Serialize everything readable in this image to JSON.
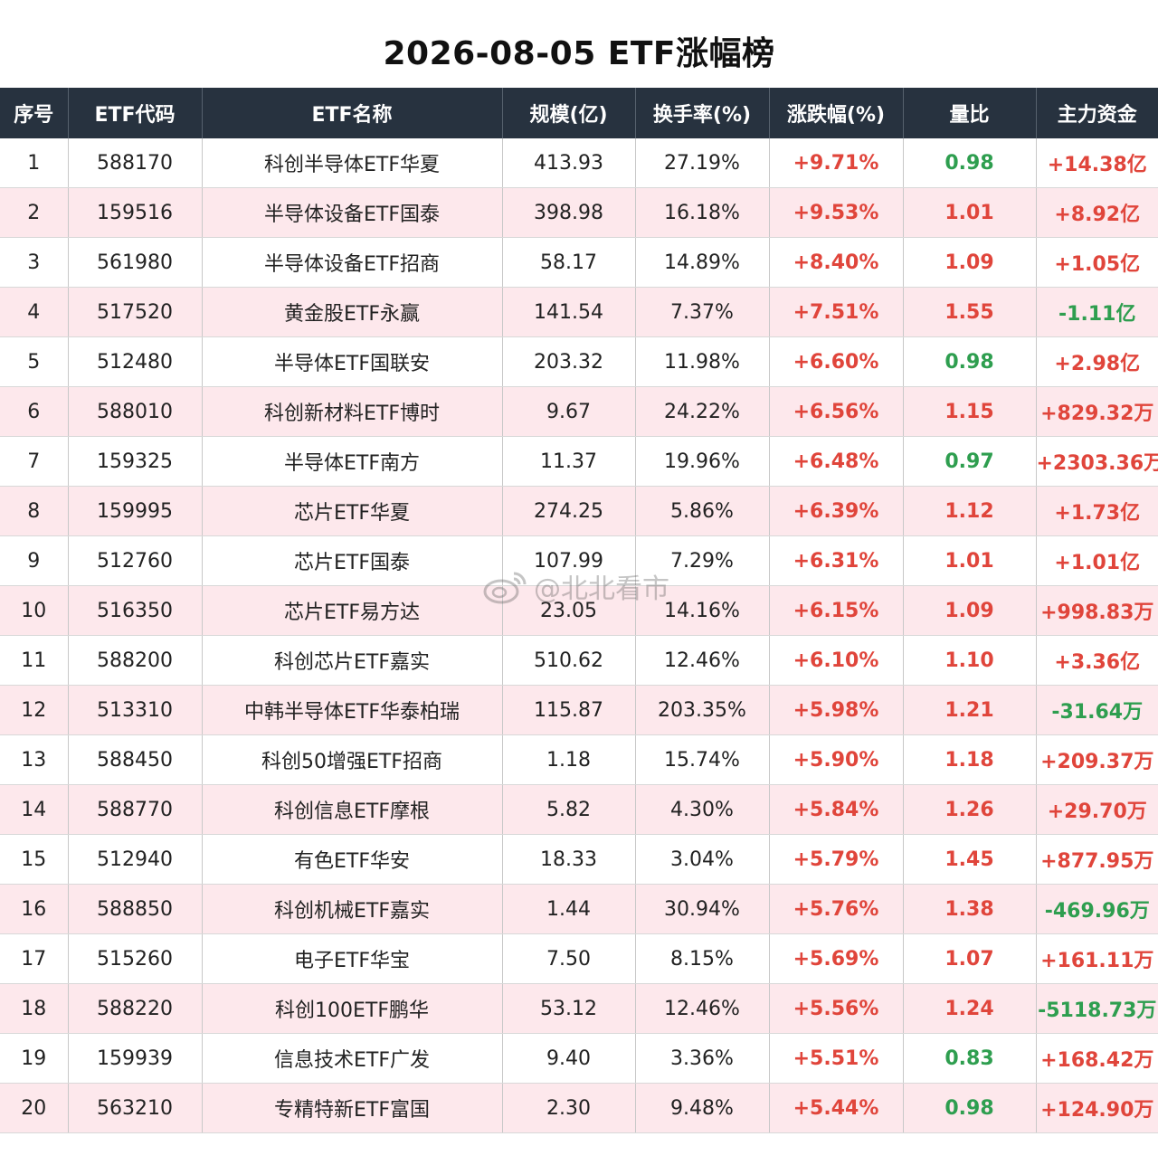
{
  "title": "2026-08-05 ETF涨幅榜",
  "columns": [
    "序号",
    "ETF代码",
    "ETF名称",
    "规模(亿)",
    "换手率(%)",
    "涨跌幅(%)",
    "量比",
    "主力资金"
  ],
  "rows": [
    {
      "rank": "1",
      "code": "588170",
      "name": "科创半导体ETF华夏",
      "scale": "413.93",
      "turnover": "27.19%",
      "change": "+9.71%",
      "ratio": "0.98",
      "ratio_dir": "down",
      "flow": "+14.38亿",
      "flow_dir": "up"
    },
    {
      "rank": "2",
      "code": "159516",
      "name": "半导体设备ETF国泰",
      "scale": "398.98",
      "turnover": "16.18%",
      "change": "+9.53%",
      "ratio": "1.01",
      "ratio_dir": "up",
      "flow": "+8.92亿",
      "flow_dir": "up"
    },
    {
      "rank": "3",
      "code": "561980",
      "name": "半导体设备ETF招商",
      "scale": "58.17",
      "turnover": "14.89%",
      "change": "+8.40%",
      "ratio": "1.09",
      "ratio_dir": "up",
      "flow": "+1.05亿",
      "flow_dir": "up"
    },
    {
      "rank": "4",
      "code": "517520",
      "name": "黄金股ETF永赢",
      "scale": "141.54",
      "turnover": "7.37%",
      "change": "+7.51%",
      "ratio": "1.55",
      "ratio_dir": "up",
      "flow": "-1.11亿",
      "flow_dir": "down"
    },
    {
      "rank": "5",
      "code": "512480",
      "name": "半导体ETF国联安",
      "scale": "203.32",
      "turnover": "11.98%",
      "change": "+6.60%",
      "ratio": "0.98",
      "ratio_dir": "down",
      "flow": "+2.98亿",
      "flow_dir": "up"
    },
    {
      "rank": "6",
      "code": "588010",
      "name": "科创新材料ETF博时",
      "scale": "9.67",
      "turnover": "24.22%",
      "change": "+6.56%",
      "ratio": "1.15",
      "ratio_dir": "up",
      "flow": "+829.32万",
      "flow_dir": "up"
    },
    {
      "rank": "7",
      "code": "159325",
      "name": "半导体ETF南方",
      "scale": "11.37",
      "turnover": "19.96%",
      "change": "+6.48%",
      "ratio": "0.97",
      "ratio_dir": "down",
      "flow": "+2303.36万",
      "flow_dir": "up"
    },
    {
      "rank": "8",
      "code": "159995",
      "name": "芯片ETF华夏",
      "scale": "274.25",
      "turnover": "5.86%",
      "change": "+6.39%",
      "ratio": "1.12",
      "ratio_dir": "up",
      "flow": "+1.73亿",
      "flow_dir": "up"
    },
    {
      "rank": "9",
      "code": "512760",
      "name": "芯片ETF国泰",
      "scale": "107.99",
      "turnover": "7.29%",
      "change": "+6.31%",
      "ratio": "1.01",
      "ratio_dir": "up",
      "flow": "+1.01亿",
      "flow_dir": "up"
    },
    {
      "rank": "10",
      "code": "516350",
      "name": "芯片ETF易方达",
      "scale": "23.05",
      "turnover": "14.16%",
      "change": "+6.15%",
      "ratio": "1.09",
      "ratio_dir": "up",
      "flow": "+998.83万",
      "flow_dir": "up"
    },
    {
      "rank": "11",
      "code": "588200",
      "name": "科创芯片ETF嘉实",
      "scale": "510.62",
      "turnover": "12.46%",
      "change": "+6.10%",
      "ratio": "1.10",
      "ratio_dir": "up",
      "flow": "+3.36亿",
      "flow_dir": "up"
    },
    {
      "rank": "12",
      "code": "513310",
      "name": "中韩半导体ETF华泰柏瑞",
      "scale": "115.87",
      "turnover": "203.35%",
      "change": "+5.98%",
      "ratio": "1.21",
      "ratio_dir": "up",
      "flow": "-31.64万",
      "flow_dir": "down"
    },
    {
      "rank": "13",
      "code": "588450",
      "name": "科创50增强ETF招商",
      "scale": "1.18",
      "turnover": "15.74%",
      "change": "+5.90%",
      "ratio": "1.18",
      "ratio_dir": "up",
      "flow": "+209.37万",
      "flow_dir": "up"
    },
    {
      "rank": "14",
      "code": "588770",
      "name": "科创信息ETF摩根",
      "scale": "5.82",
      "turnover": "4.30%",
      "change": "+5.84%",
      "ratio": "1.26",
      "ratio_dir": "up",
      "flow": "+29.70万",
      "flow_dir": "up"
    },
    {
      "rank": "15",
      "code": "512940",
      "name": "有色ETF华安",
      "scale": "18.33",
      "turnover": "3.04%",
      "change": "+5.79%",
      "ratio": "1.45",
      "ratio_dir": "up",
      "flow": "+877.95万",
      "flow_dir": "up"
    },
    {
      "rank": "16",
      "code": "588850",
      "name": "科创机械ETF嘉实",
      "scale": "1.44",
      "turnover": "30.94%",
      "change": "+5.76%",
      "ratio": "1.38",
      "ratio_dir": "up",
      "flow": "-469.96万",
      "flow_dir": "down"
    },
    {
      "rank": "17",
      "code": "515260",
      "name": "电子ETF华宝",
      "scale": "7.50",
      "turnover": "8.15%",
      "change": "+5.69%",
      "ratio": "1.07",
      "ratio_dir": "up",
      "flow": "+161.11万",
      "flow_dir": "up"
    },
    {
      "rank": "18",
      "code": "588220",
      "name": "科创100ETF鹏华",
      "scale": "53.12",
      "turnover": "12.46%",
      "change": "+5.56%",
      "ratio": "1.24",
      "ratio_dir": "up",
      "flow": "-5118.73万",
      "flow_dir": "down"
    },
    {
      "rank": "19",
      "code": "159939",
      "name": "信息技术ETF广发",
      "scale": "9.40",
      "turnover": "3.36%",
      "change": "+5.51%",
      "ratio": "0.83",
      "ratio_dir": "down",
      "flow": "+168.42万",
      "flow_dir": "up"
    },
    {
      "rank": "20",
      "code": "563210",
      "name": "专精特新ETF富国",
      "scale": "2.30",
      "turnover": "9.48%",
      "change": "+5.44%",
      "ratio": "0.98",
      "ratio_dir": "down",
      "flow": "+124.90万",
      "flow_dir": "up"
    }
  ],
  "colors": {
    "up": "#e0453b",
    "down": "#2e9e4f",
    "header_bg": "#27323f",
    "stripe": "#fde8ec"
  },
  "watermark": {
    "text": "@北北看市",
    "icon": "weibo-icon"
  }
}
